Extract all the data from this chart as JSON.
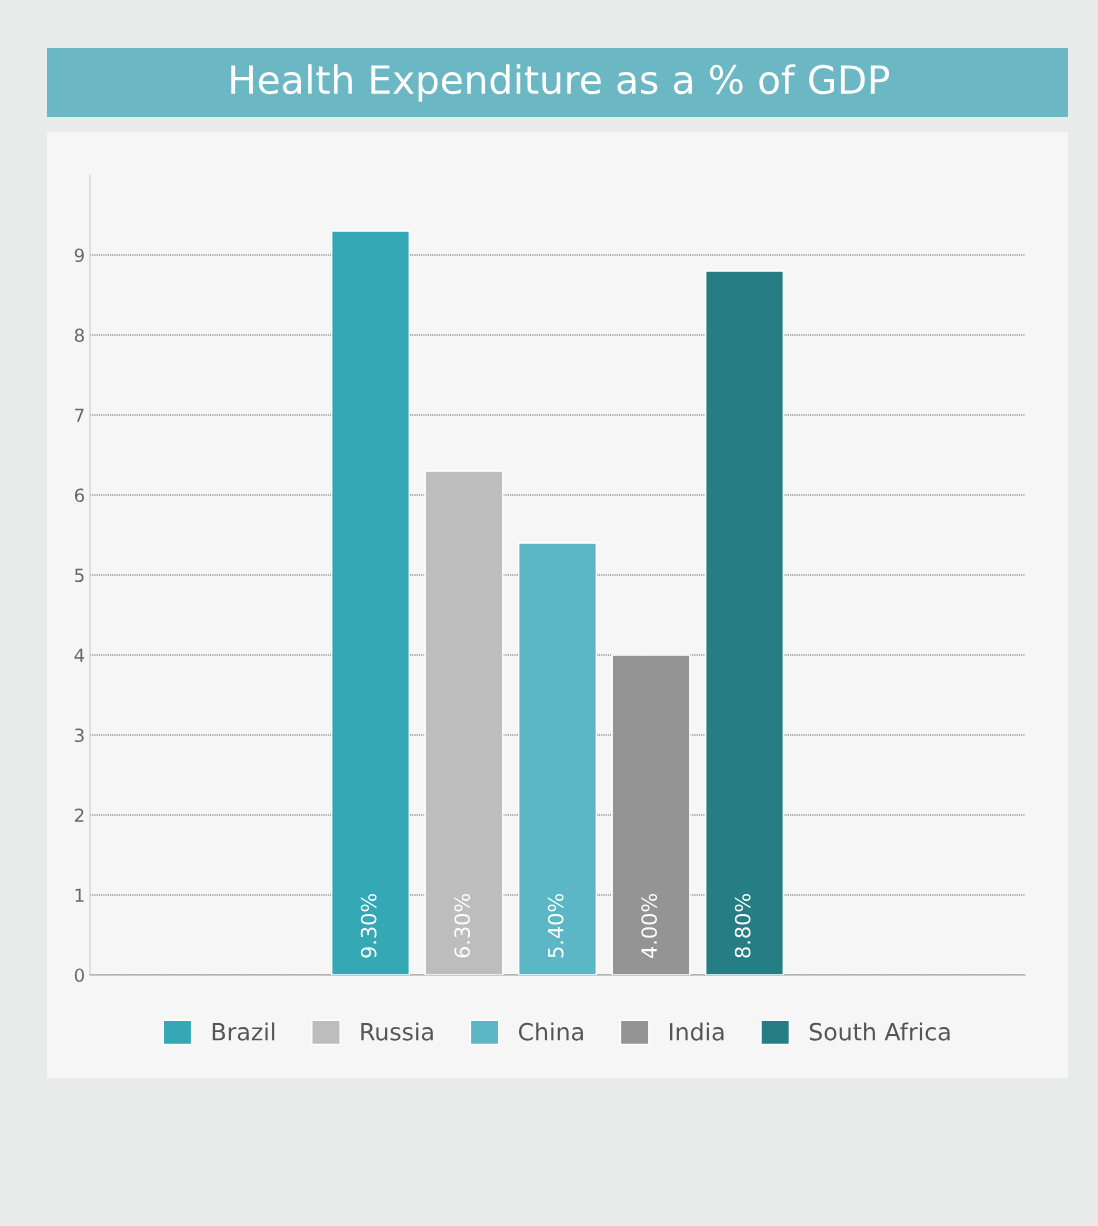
{
  "chart_data": {
    "type": "bar",
    "title": "Health Expenditure as a % of GDP",
    "categories": [
      null
    ],
    "series": [
      {
        "name": "Brazil",
        "color": "#35a8b6",
        "values": [
          9.3
        ],
        "value_labels": [
          "9.30%"
        ]
      },
      {
        "name": "Russia",
        "color": "#bdbdbd",
        "values": [
          6.3
        ],
        "value_labels": [
          "6.30%"
        ]
      },
      {
        "name": "China",
        "color": "#5bb7c6",
        "values": [
          5.4
        ],
        "value_labels": [
          "5.40%"
        ]
      },
      {
        "name": "India",
        "color": "#949494",
        "values": [
          4.0
        ],
        "value_labels": [
          "4.00%"
        ]
      },
      {
        "name": "South Africa",
        "color": "#267e84",
        "values": [
          8.8
        ],
        "value_labels": [
          "8.80%"
        ]
      }
    ],
    "ylim": [
      0,
      10
    ],
    "yticks": [
      0,
      1,
      2,
      3,
      4,
      5,
      6,
      7,
      8,
      9
    ],
    "grid": "y",
    "legend": "bottom"
  }
}
